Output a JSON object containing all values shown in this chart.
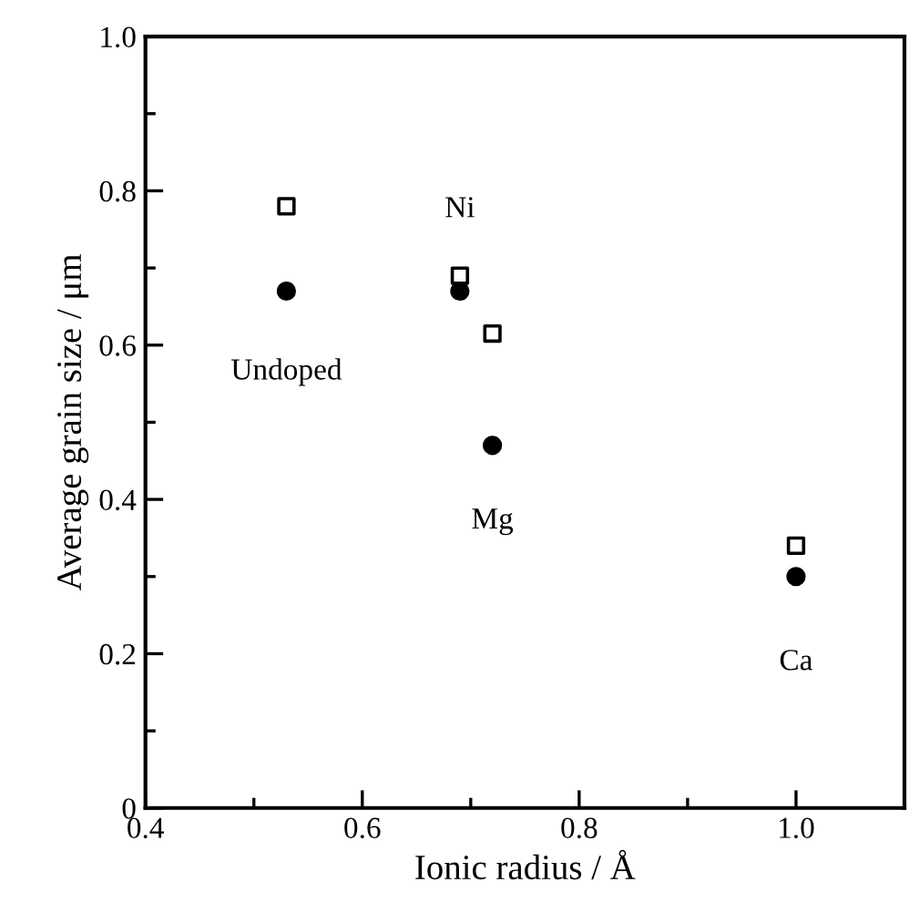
{
  "chart_data": {
    "type": "scatter",
    "xlabel": "Ionic radius / Å",
    "ylabel": "Average grain size / μm",
    "xlim": [
      0.4,
      1.1
    ],
    "ylim": [
      0,
      1.0
    ],
    "xticks": [
      0.4,
      0.6,
      0.8,
      "1.0"
    ],
    "yticks": [
      {
        "value": 0,
        "label": "0"
      },
      0.2,
      0.4,
      0.6,
      0.8,
      {
        "value": 1.0,
        "label": "1.0"
      }
    ],
    "grid": false,
    "legend": false,
    "series": [
      {
        "color": "#000000",
        "marker": "square",
        "x": [
          0.53,
          0.69,
          0.72,
          1.0
        ],
        "values": [
          0.78,
          0.69,
          0.615,
          0.34
        ]
      },
      {
        "color": "#000000",
        "marker": "circle",
        "x": [
          0.53,
          0.69,
          0.72,
          1.0
        ],
        "values": [
          0.67,
          0.67,
          0.47,
          0.3
        ]
      }
    ],
    "annotations": [
      {
        "text": "Undoped",
        "x": 0.53,
        "y": 0.67
      },
      {
        "text": "Ni",
        "x": 0.69,
        "y": 0.69
      },
      {
        "text": "Mg",
        "x": 0.72,
        "y": 0.47
      },
      {
        "text": "Ca",
        "x": 1.0,
        "y": 0.3
      }
    ]
  }
}
